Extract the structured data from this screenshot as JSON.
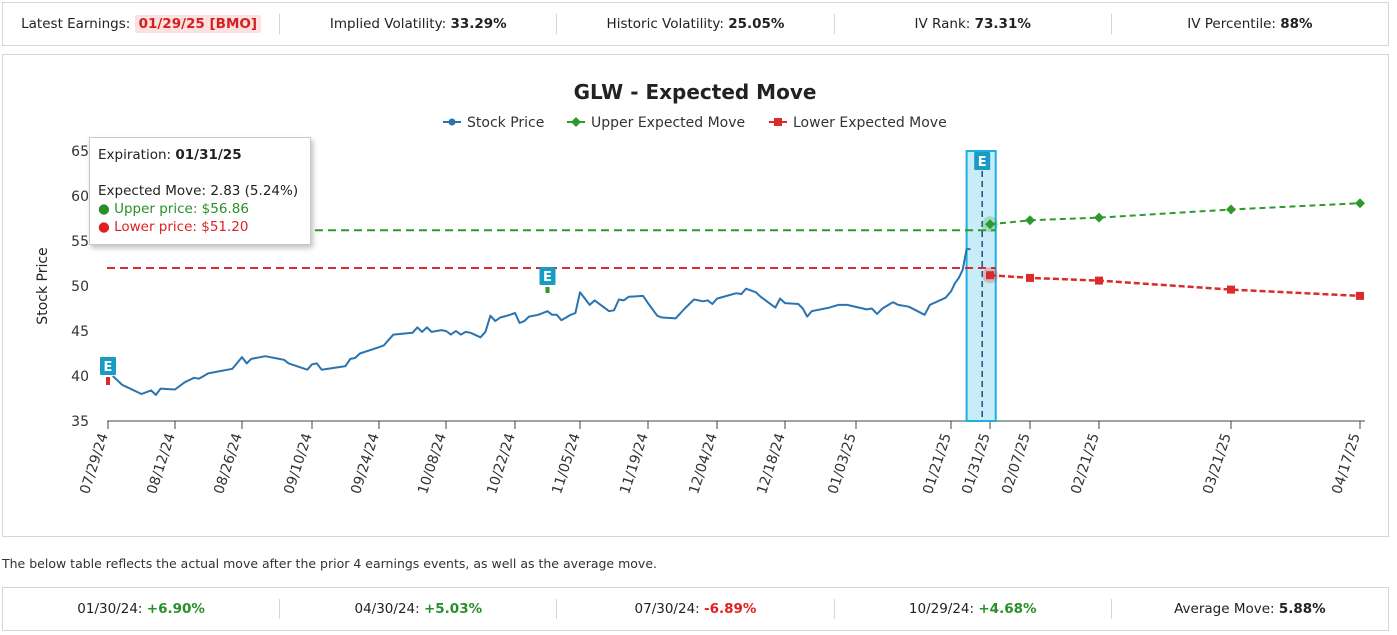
{
  "stats": {
    "latest_earnings_label": "Latest Earnings:",
    "latest_earnings_value": "01/29/25 [BMO]",
    "iv_label": "Implied Volatility:",
    "iv_value": "33.29%",
    "hv_label": "Historic Volatility:",
    "hv_value": "25.05%",
    "ivrank_label": "IV Rank:",
    "ivrank_value": "73.31%",
    "ivpct_label": "IV Percentile:",
    "ivpct_value": "88%"
  },
  "tooltip": {
    "expiration_label": "Expiration:",
    "expiration_value": "01/31/25",
    "expected_move": "Expected Move: 2.83 (5.24%)",
    "upper": "● Upper price: $56.86",
    "lower": "● Lower price: $51.20"
  },
  "note": "The below table reflects the actual move after the prior 4 earnings events, as well as the average move.",
  "moves": [
    {
      "label": "01/30/24:",
      "value": "+6.90%",
      "sign": "pos"
    },
    {
      "label": "04/30/24:",
      "value": "+5.03%",
      "sign": "pos"
    },
    {
      "label": "07/30/24:",
      "value": "-6.89%",
      "sign": "neg"
    },
    {
      "label": "10/29/24:",
      "value": "+4.68%",
      "sign": "pos"
    }
  ],
  "average": {
    "label": "Average Move:",
    "value": "5.88%"
  },
  "colors": {
    "stock": "#2b74b0",
    "upper": "#2e9a2e",
    "lower": "#d92b2b",
    "highlight": "#c8ecf8",
    "highlight_border": "#1ab0e6",
    "earn_badge": "#1a9bc4"
  },
  "chart_data": {
    "type": "line",
    "title": "GLW - Expected Move",
    "ylabel": "Stock Price",
    "ylim": [
      35,
      65
    ],
    "yticks": [
      35,
      40,
      45,
      50,
      55,
      60,
      65
    ],
    "xtick_labels": [
      "07/29/24",
      "08/12/24",
      "08/26/24",
      "09/10/24",
      "09/24/24",
      "10/08/24",
      "10/22/24",
      "11/05/24",
      "11/19/24",
      "12/04/24",
      "12/18/24",
      "01/03/25",
      "01/21/25",
      "01/31/25",
      "02/07/25",
      "02/21/25",
      "03/21/25",
      "04/17/25"
    ],
    "legend": [
      "Stock Price",
      "Upper Expected Move",
      "Lower Expected Move"
    ],
    "legend_position": "top-center",
    "series": [
      {
        "name": "Stock Price",
        "points": [
          [
            "07/30/24",
            40.0
          ],
          [
            "08/01/24",
            39.0
          ],
          [
            "08/05/24",
            38.0
          ],
          [
            "08/07/24",
            38.4
          ],
          [
            "08/08/24",
            37.9
          ],
          [
            "08/09/24",
            38.6
          ],
          [
            "08/12/24",
            38.5
          ],
          [
            "08/14/24",
            39.3
          ],
          [
            "08/16/24",
            39.8
          ],
          [
            "08/17/24",
            39.7
          ],
          [
            "08/19/24",
            40.3
          ],
          [
            "08/21/24",
            40.5
          ],
          [
            "08/24/24",
            40.8
          ],
          [
            "08/26/24",
            42.1
          ],
          [
            "08/27/24",
            41.4
          ],
          [
            "08/28/24",
            41.9
          ],
          [
            "08/31/24",
            42.2
          ],
          [
            "09/02/24",
            42.0
          ],
          [
            "09/04/24",
            41.8
          ],
          [
            "09/05/24",
            41.4
          ],
          [
            "09/09/24",
            40.7
          ],
          [
            "09/10/24",
            41.3
          ],
          [
            "09/11/24",
            41.4
          ],
          [
            "09/12/24",
            40.7
          ],
          [
            "09/17/24",
            41.1
          ],
          [
            "09/18/24",
            41.9
          ],
          [
            "09/19/24",
            42.0
          ],
          [
            "09/20/24",
            42.5
          ],
          [
            "09/24/24",
            43.2
          ],
          [
            "09/25/24",
            43.4
          ],
          [
            "09/27/24",
            44.6
          ],
          [
            "10/01/24",
            44.8
          ],
          [
            "10/02/24",
            45.4
          ],
          [
            "10/03/24",
            44.9
          ],
          [
            "10/04/24",
            45.4
          ],
          [
            "10/05/24",
            44.9
          ],
          [
            "10/07/24",
            45.1
          ],
          [
            "10/08/24",
            45.0
          ],
          [
            "10/09/24",
            44.6
          ],
          [
            "10/10/24",
            45.0
          ],
          [
            "10/11/24",
            44.6
          ],
          [
            "10/12/24",
            44.9
          ],
          [
            "10/13/24",
            44.8
          ],
          [
            "10/15/24",
            44.3
          ],
          [
            "10/16/24",
            44.9
          ],
          [
            "10/17/24",
            46.7
          ],
          [
            "10/18/24",
            46.1
          ],
          [
            "10/19/24",
            46.5
          ],
          [
            "10/21/24",
            46.8
          ],
          [
            "10/22/24",
            47.0
          ],
          [
            "10/23/24",
            45.9
          ],
          [
            "10/24/24",
            46.1
          ],
          [
            "10/25/24",
            46.6
          ],
          [
            "10/27/24",
            46.8
          ],
          [
            "10/29/24",
            47.2
          ],
          [
            "10/30/24",
            46.8
          ],
          [
            "10/31/24",
            46.8
          ],
          [
            "11/01/24",
            46.2
          ],
          [
            "11/03/24",
            46.8
          ],
          [
            "11/04/24",
            47.0
          ],
          [
            "11/05/24",
            49.3
          ],
          [
            "11/06/24",
            48.6
          ],
          [
            "11/07/24",
            47.9
          ],
          [
            "11/08/24",
            48.4
          ],
          [
            "11/10/24",
            47.6
          ],
          [
            "11/11/24",
            47.2
          ],
          [
            "11/12/24",
            47.3
          ],
          [
            "11/13/24",
            48.5
          ],
          [
            "11/14/24",
            48.4
          ],
          [
            "11/15/24",
            48.8
          ],
          [
            "11/18/24",
            48.9
          ],
          [
            "11/19/24",
            48.1
          ],
          [
            "11/20/24",
            47.4
          ],
          [
            "11/21/24",
            46.7
          ],
          [
            "11/22/24",
            46.5
          ],
          [
            "11/25/24",
            46.4
          ],
          [
            "11/27/24",
            47.5
          ],
          [
            "11/29/24",
            48.5
          ],
          [
            "12/01/24",
            48.3
          ],
          [
            "12/02/24",
            48.4
          ],
          [
            "12/03/24",
            48.0
          ],
          [
            "12/04/24",
            48.6
          ],
          [
            "12/06/24",
            48.9
          ],
          [
            "12/08/24",
            49.2
          ],
          [
            "12/09/24",
            49.1
          ],
          [
            "12/10/24",
            49.7
          ],
          [
            "12/12/24",
            49.3
          ],
          [
            "12/13/24",
            48.8
          ],
          [
            "12/14/24",
            48.4
          ],
          [
            "12/16/24",
            47.6
          ],
          [
            "12/17/24",
            48.6
          ],
          [
            "12/18/24",
            48.1
          ],
          [
            "12/21/24",
            48.0
          ],
          [
            "12/22/24",
            47.5
          ],
          [
            "12/23/24",
            46.6
          ],
          [
            "12/24/24",
            47.2
          ],
          [
            "12/28/24",
            47.6
          ],
          [
            "12/30/24",
            47.9
          ],
          [
            "01/01/25",
            47.9
          ],
          [
            "01/05/25",
            47.4
          ],
          [
            "01/06/25",
            47.5
          ],
          [
            "01/07/25",
            46.9
          ],
          [
            "01/08/25",
            47.5
          ],
          [
            "01/10/25",
            48.2
          ],
          [
            "01/11/25",
            47.9
          ],
          [
            "01/13/25",
            47.7
          ],
          [
            "01/16/25",
            46.8
          ],
          [
            "01/17/25",
            47.9
          ],
          [
            "01/20/25",
            48.7
          ],
          [
            "01/21/25",
            49.4
          ],
          [
            "01/22/25",
            50.3
          ],
          [
            "01/23/25",
            50.9
          ],
          [
            "01/24/25",
            51.8
          ],
          [
            "01/25/25",
            54.1
          ],
          [
            "01/26/25",
            54.1
          ]
        ]
      },
      {
        "name": "Upper Expected Move",
        "points": [
          [
            "01/31/25",
            56.86
          ],
          [
            "02/07/25",
            57.3
          ],
          [
            "02/21/25",
            57.6
          ],
          [
            "03/21/25",
            58.5
          ],
          [
            "04/17/25",
            59.2
          ]
        ]
      },
      {
        "name": "Lower Expected Move",
        "points": [
          [
            "01/31/25",
            51.2
          ],
          [
            "02/07/25",
            50.9
          ],
          [
            "02/21/25",
            50.6
          ],
          [
            "03/21/25",
            49.6
          ],
          [
            "04/17/25",
            48.9
          ]
        ]
      }
    ],
    "reference_lines": [
      {
        "name": "Upper Expected Move",
        "y": 56.2
      },
      {
        "name": "Lower Expected Move",
        "y": 52.0
      }
    ],
    "highlight_range": [
      "01/25/25",
      "02/01/25"
    ],
    "earnings_markers": [
      {
        "date": "07/29/24",
        "label": "E",
        "move": "down"
      },
      {
        "date": "10/29/24",
        "label": "E",
        "move": "up"
      },
      {
        "date": "01/29/25",
        "label": "E",
        "move": "none"
      }
    ]
  }
}
